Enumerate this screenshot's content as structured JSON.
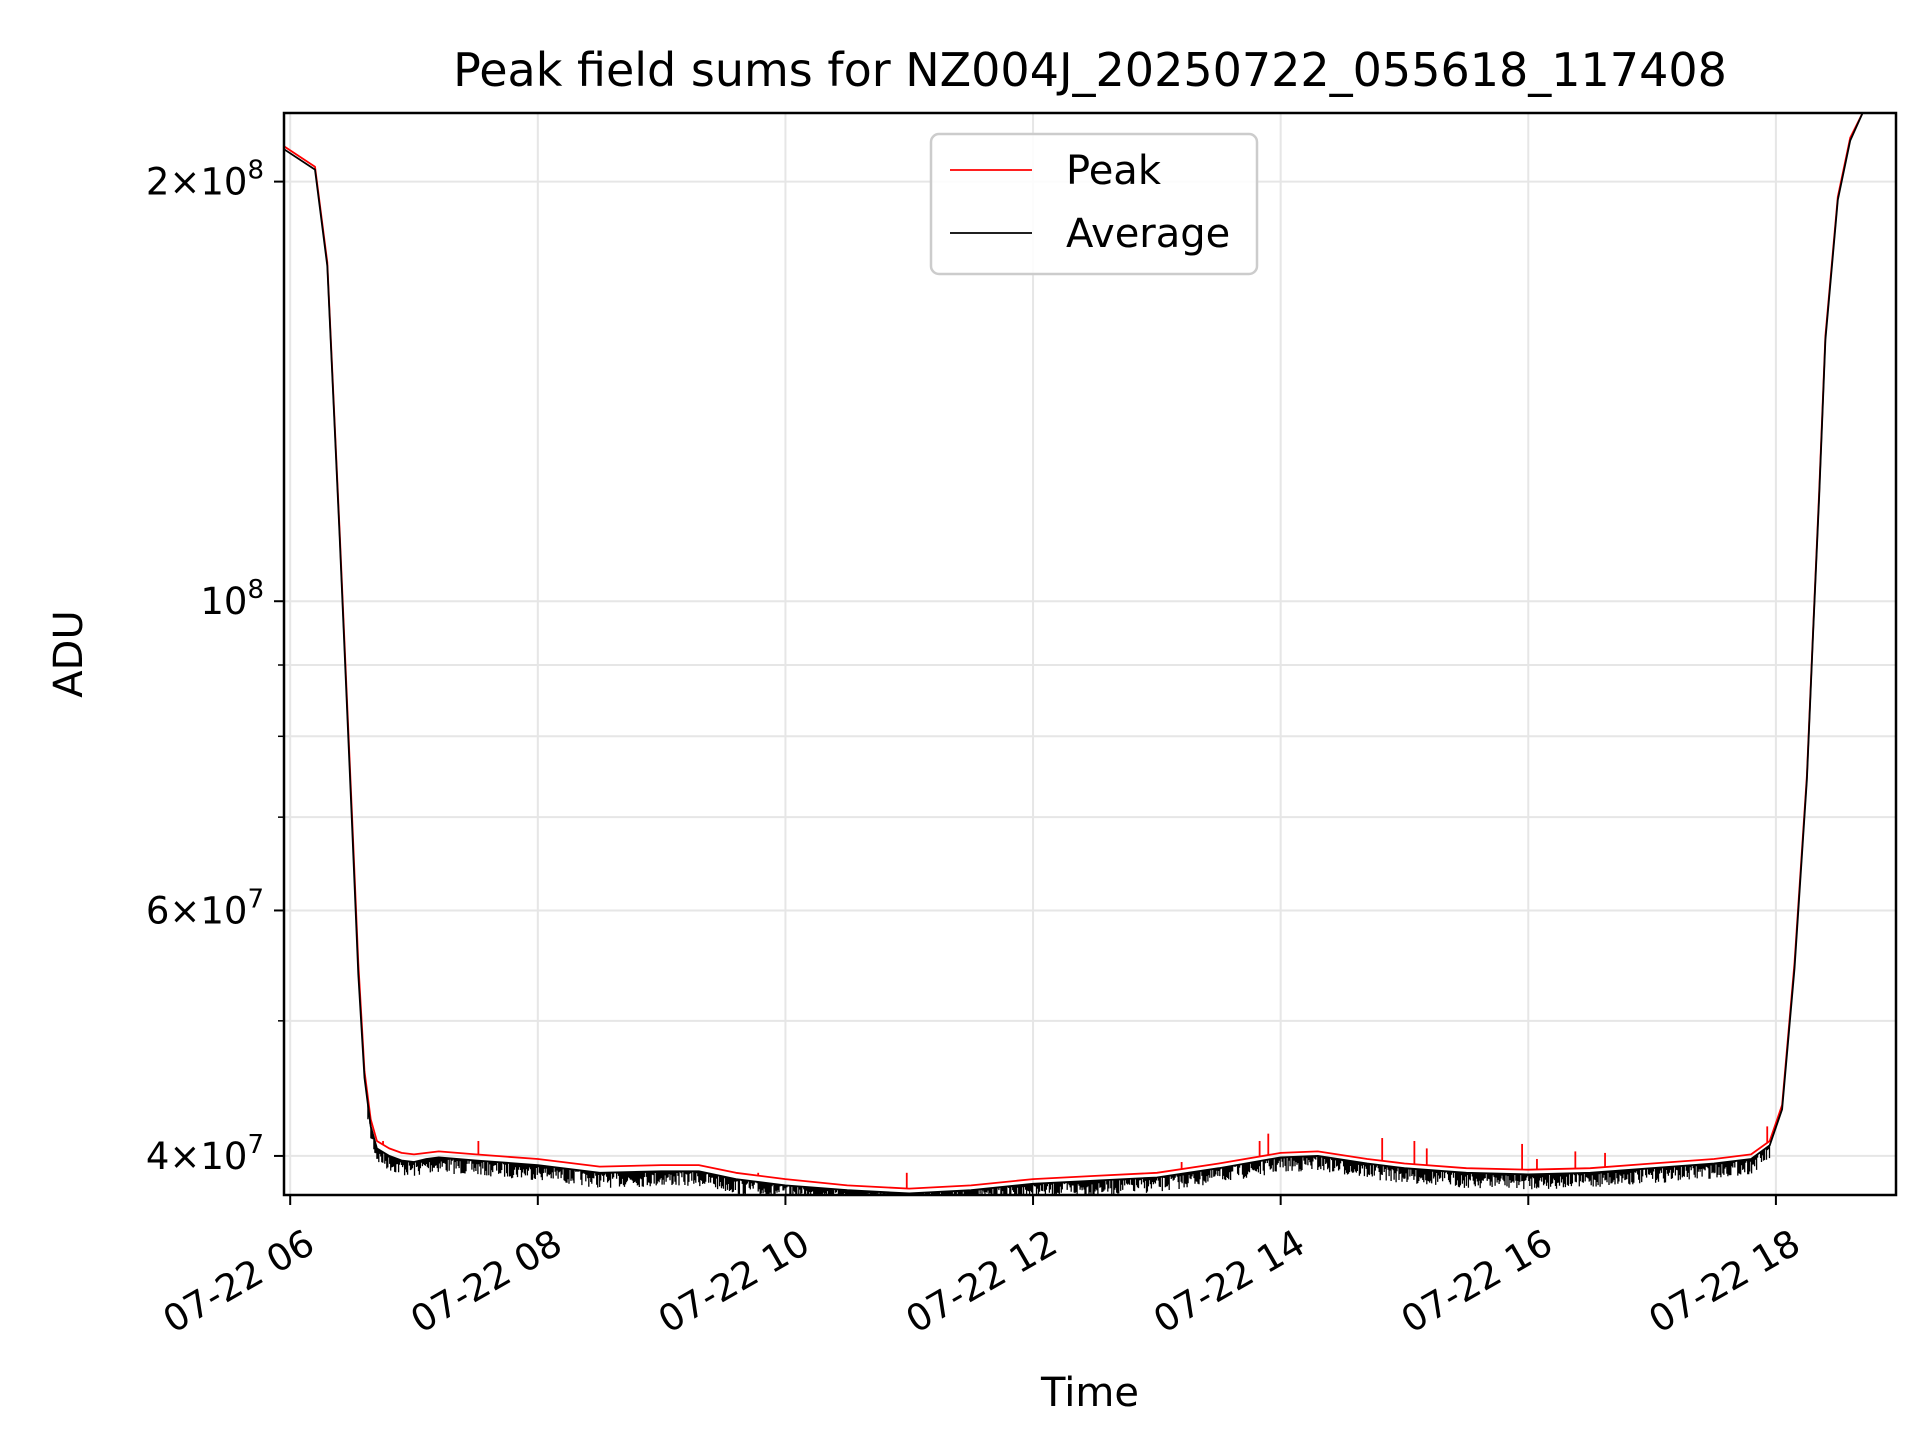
{
  "chart_data": {
    "type": "line",
    "title": "Peak field sums for NZ004J_20250722_055618_117408",
    "xlabel": "Time",
    "ylabel": "ADU",
    "x_tick_labels": [
      "07-22 06",
      "07-22 08",
      "07-22 10",
      "07-22 12",
      "07-22 14",
      "07-22 16",
      "07-22 18"
    ],
    "x_tick_hours": [
      6,
      8,
      10,
      12,
      14,
      16,
      18
    ],
    "xlim_hours": [
      5.95,
      18.97
    ],
    "y_scale": "log",
    "ylim": [
      37500000,
      224000000
    ],
    "y_major_ticks": [
      {
        "value": 40000000,
        "base": "4",
        "exp": "7"
      },
      {
        "value": 60000000,
        "base": "6",
        "exp": "7"
      },
      {
        "value": 100000000,
        "base": "",
        "exp": "8"
      },
      {
        "value": 200000000,
        "base": "2",
        "exp": "8"
      }
    ],
    "y_minor_ticks": [
      50000000,
      70000000,
      80000000,
      90000000
    ],
    "grid": true,
    "legend_position": "top-center",
    "series": [
      {
        "name": "Peak",
        "color": "#ff0000",
        "x_hours": [
          5.95,
          6.2,
          6.3,
          6.35,
          6.4,
          6.5,
          6.55,
          6.6,
          6.65,
          6.7,
          6.8,
          6.9,
          7.0,
          7.1,
          7.2,
          7.5,
          8.0,
          8.5,
          9.0,
          9.3,
          9.6,
          10.0,
          10.5,
          11.0,
          11.5,
          12.0,
          12.5,
          13.0,
          13.5,
          14.0,
          14.3,
          14.7,
          15.0,
          15.5,
          16.0,
          16.5,
          17.0,
          17.5,
          17.8,
          17.95,
          18.05,
          18.15,
          18.25,
          18.3,
          18.35,
          18.4,
          18.5,
          18.6,
          18.7,
          18.97
        ],
        "values": [
          212000000,
          205000000,
          175000000,
          140000000,
          112000000,
          70000000,
          55000000,
          46000000,
          42500000,
          41000000,
          40500000,
          40200000,
          40100000,
          40200000,
          40300000,
          40100000,
          39800000,
          39300000,
          39400000,
          39400000,
          38900000,
          38500000,
          38100000,
          37900000,
          38100000,
          38500000,
          38700000,
          38900000,
          39500000,
          40200000,
          40300000,
          39800000,
          39500000,
          39200000,
          39100000,
          39200000,
          39500000,
          39800000,
          40100000,
          41000000,
          43500000,
          55000000,
          75000000,
          95000000,
          120000000,
          155000000,
          195000000,
          215000000,
          224000000,
          224000000
        ]
      },
      {
        "name": "Average",
        "color": "#000000",
        "x_hours": [
          5.95,
          6.2,
          6.3,
          6.35,
          6.4,
          6.5,
          6.55,
          6.6,
          6.65,
          6.7,
          6.8,
          6.9,
          7.0,
          7.1,
          7.2,
          7.5,
          8.0,
          8.5,
          9.0,
          9.3,
          9.6,
          10.0,
          10.5,
          11.0,
          11.5,
          12.0,
          12.5,
          13.0,
          13.5,
          14.0,
          14.3,
          14.7,
          15.0,
          15.5,
          16.0,
          16.5,
          17.0,
          17.5,
          17.8,
          17.95,
          18.05,
          18.15,
          18.25,
          18.3,
          18.35,
          18.4,
          18.5,
          18.6,
          18.7,
          18.97
        ],
        "values": [
          211000000,
          204000000,
          174000000,
          139000000,
          111000000,
          69000000,
          54000000,
          45500000,
          42000000,
          40500000,
          40000000,
          39700000,
          39600000,
          39800000,
          39900000,
          39700000,
          39400000,
          38900000,
          39000000,
          39000000,
          38500000,
          38100000,
          37800000,
          37600000,
          37800000,
          38200000,
          38400000,
          38600000,
          39200000,
          39900000,
          40000000,
          39500000,
          39200000,
          38900000,
          38800000,
          38900000,
          39200000,
          39500000,
          39800000,
          40700000,
          43200000,
          54500000,
          74500000,
          94500000,
          119000000,
          154000000,
          194000000,
          214000000,
          224000000,
          224000000
        ]
      }
    ],
    "peak_spikes": [
      {
        "x_hours": 6.75,
        "value": 41000000
      },
      {
        "x_hours": 7.52,
        "value": 41000000
      },
      {
        "x_hours": 9.78,
        "value": 38900000
      },
      {
        "x_hours": 10.98,
        "value": 38900000
      },
      {
        "x_hours": 13.2,
        "value": 39600000
      },
      {
        "x_hours": 13.83,
        "value": 41000000
      },
      {
        "x_hours": 13.9,
        "value": 41500000
      },
      {
        "x_hours": 14.82,
        "value": 41200000
      },
      {
        "x_hours": 15.08,
        "value": 41000000
      },
      {
        "x_hours": 15.18,
        "value": 40500000
      },
      {
        "x_hours": 15.95,
        "value": 40800000
      },
      {
        "x_hours": 16.07,
        "value": 39800000
      },
      {
        "x_hours": 16.38,
        "value": 40300000
      },
      {
        "x_hours": 16.62,
        "value": 40200000
      },
      {
        "x_hours": 17.93,
        "value": 42000000
      },
      {
        "x_hours": 18.05,
        "value": 43500000
      }
    ]
  }
}
